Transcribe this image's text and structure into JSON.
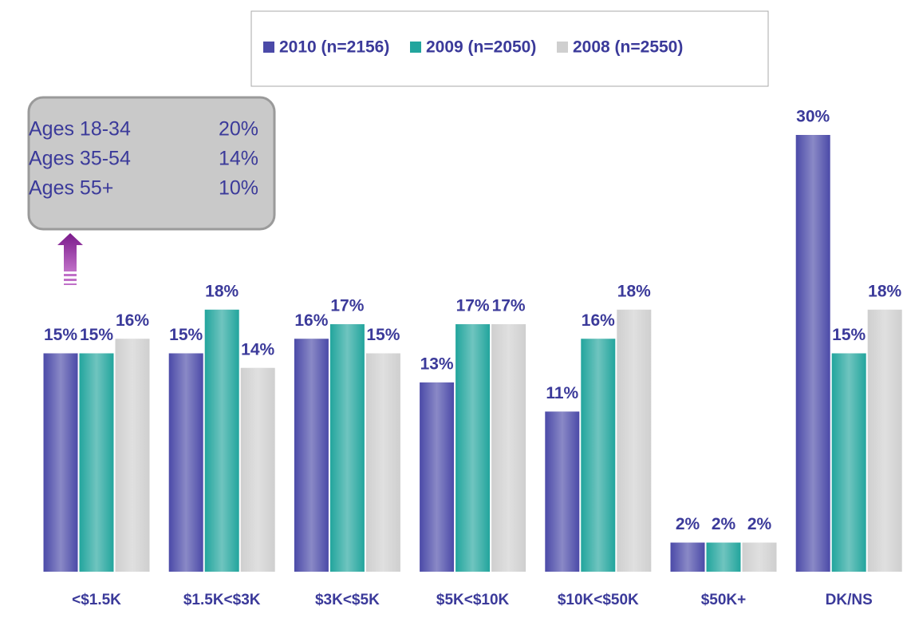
{
  "chart_data": {
    "type": "bar",
    "categories": [
      "<$1.5K",
      "$1.5K<$3K",
      "$3K<$5K",
      "$5K<$10K",
      "$10K<$50K",
      "$50K+",
      "DK/NS"
    ],
    "series": [
      {
        "name": "2010 (n=2156)",
        "color": "#4b4aa8",
        "values": [
          15,
          15,
          16,
          13,
          11,
          2,
          30
        ],
        "value_labels": [
          "15%",
          "15%",
          "16%",
          "13%",
          "11%",
          "2%",
          "30%"
        ]
      },
      {
        "name": "2009 (n=2050)",
        "color": "#22a59d",
        "values": [
          15,
          18,
          17,
          17,
          16,
          2,
          15
        ],
        "value_labels": [
          "15%",
          "18%",
          "17%",
          "17%",
          "16%",
          "2%",
          "15%"
        ]
      },
      {
        "name": "2008 (n=2550)",
        "color": "#cfcfcf",
        "values": [
          16,
          14,
          15,
          17,
          18,
          2,
          18
        ],
        "value_labels": [
          "16%",
          "14%",
          "15%",
          "17%",
          "18%",
          "2%",
          "18%"
        ]
      }
    ],
    "annotation": {
      "rows": [
        {
          "label": "Ages 18-34",
          "value": "20%"
        },
        {
          "label": "Ages 35-54",
          "value": "14%"
        },
        {
          "label": "Ages 55+",
          "value": "10%"
        }
      ]
    }
  }
}
